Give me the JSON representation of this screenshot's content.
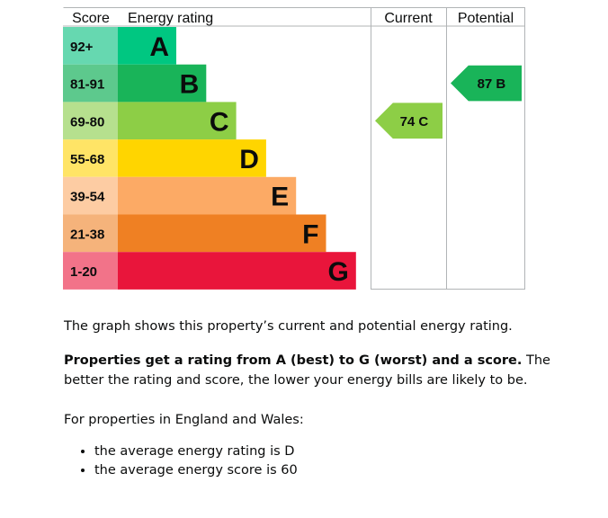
{
  "chart_data": {
    "type": "bar",
    "headers": {
      "score": "Score",
      "rating": "Energy rating",
      "current": "Current",
      "potential": "Potential"
    },
    "bands": [
      {
        "letter": "A",
        "range": "92+",
        "color": "#00c781",
        "label_bg": "#66d8b0"
      },
      {
        "letter": "B",
        "range": "81-91",
        "color": "#19b459",
        "label_bg": "#5dc98d"
      },
      {
        "letter": "C",
        "range": "69-80",
        "color": "#8dce46",
        "label_bg": "#b6e08e"
      },
      {
        "letter": "D",
        "range": "55-68",
        "color": "#ffd500",
        "label_bg": "#ffe466"
      },
      {
        "letter": "E",
        "range": "39-54",
        "color": "#fcaa65",
        "label_bg": "#fdcca3"
      },
      {
        "letter": "F",
        "range": "21-38",
        "color": "#ef8023",
        "label_bg": "#f5b37b"
      },
      {
        "letter": "G",
        "range": "1-20",
        "color": "#e9153b",
        "label_bg": "#f27389"
      }
    ],
    "current": {
      "score": 74,
      "band": "C",
      "label": "74 C",
      "color": "#8dce46"
    },
    "potential": {
      "score": 87,
      "band": "B",
      "label": "87 B",
      "color": "#19b459"
    }
  },
  "text": {
    "p1": "The graph shows this property’s current and potential energy rating.",
    "p2_bold": "Properties get a rating from A (best) to G (worst) and a score.",
    "p2_rest": " The better the rating and score, the lower your energy bills are likely to be.",
    "p3": "For properties in England and Wales:",
    "bullets": [
      "the average energy rating is D",
      "the average energy score is 60"
    ]
  }
}
